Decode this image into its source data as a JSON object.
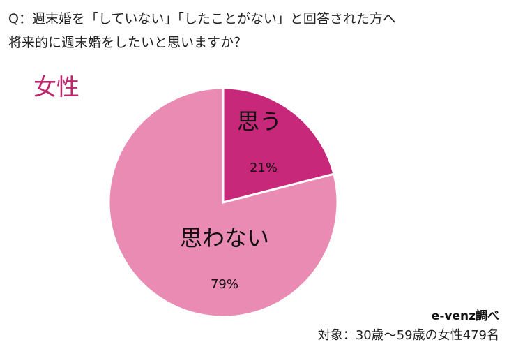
{
  "question": {
    "line1": "Q：週末婚を「していない」「したことがない」と回答された方へ",
    "line2": "将来的に週末婚をしたいと思いますか？"
  },
  "group_label": "女性",
  "chart_data": {
    "type": "pie",
    "title": "",
    "slices": [
      {
        "label": "思う",
        "value": 21,
        "value_label": "21%",
        "color": "#c8287a"
      },
      {
        "label": "思わない",
        "value": 79,
        "value_label": "79%",
        "color": "#ea8bb4"
      }
    ]
  },
  "footer": {
    "source": "e-venz調べ",
    "target": "対象：30歳〜59歳の女性479名"
  }
}
